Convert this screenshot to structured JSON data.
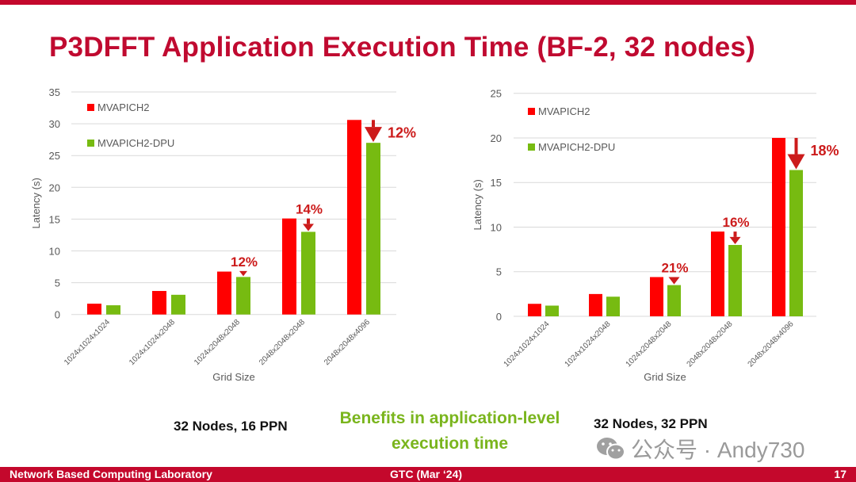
{
  "slide": {
    "title": "P3DFFT Application Execution Time (BF-2, 32 nodes)",
    "benefit_text_line1": "Benefits in application-level",
    "benefit_text_line2": "execution time",
    "footer_left": "Network Based Computing Laboratory",
    "footer_center": "GTC (Mar ‘24)",
    "page_number": "17",
    "watermark": "公众号 · Andy730",
    "colors": {
      "brand_red": "#c4082c",
      "series_red": "#ff0000",
      "series_green": "#77bb11",
      "annotation_red": "#cc1b1b",
      "benefit_green": "#7ab51d"
    }
  },
  "chart_data": [
    {
      "type": "bar",
      "caption": "32 Nodes, 16 PPN",
      "xlabel": "Grid Size",
      "ylabel": "Latency (s)",
      "ylim": [
        0,
        35
      ],
      "yticks": [
        "0",
        "5",
        "10",
        "15",
        "20",
        "25",
        "30",
        "35"
      ],
      "grid": true,
      "legend": "top-left",
      "categories": [
        "1024x1024x1024",
        "1024x1024x2048",
        "1024x2048x2048",
        "2048x2048x2048",
        "2048x2048x4096"
      ],
      "series": [
        {
          "name": "MVAPICH2",
          "color": "#ff0000",
          "values": [
            1.7,
            3.7,
            6.75,
            15.1,
            30.6
          ]
        },
        {
          "name": "MVAPICH2-DPU",
          "color": "#77bb11",
          "values": [
            1.45,
            3.1,
            5.9,
            13.0,
            27.0
          ]
        }
      ],
      "annotations": [
        {
          "category": "1024x2048x2048",
          "text": "12%"
        },
        {
          "category": "2048x2048x2048",
          "text": "14%"
        },
        {
          "category": "2048x2048x4096",
          "text": "12%"
        }
      ]
    },
    {
      "type": "bar",
      "caption": "32 Nodes, 32 PPN",
      "xlabel": "Grid Size",
      "ylabel": "Latency (s)",
      "ylim": [
        0,
        25
      ],
      "yticks": [
        "0",
        "5",
        "10",
        "15",
        "20",
        "25"
      ],
      "grid": true,
      "legend": "top-left",
      "categories": [
        "1024x1024x1024",
        "1024x1024x2048",
        "1024x2048x2048",
        "2048x2048x2048",
        "2048x2048x4096"
      ],
      "series": [
        {
          "name": "MVAPICH2",
          "color": "#ff0000",
          "values": [
            1.4,
            2.5,
            4.4,
            9.5,
            20.0
          ]
        },
        {
          "name": "MVAPICH2-DPU",
          "color": "#77bb11",
          "values": [
            1.2,
            2.2,
            3.5,
            8.0,
            16.4
          ]
        }
      ],
      "annotations": [
        {
          "category": "1024x2048x2048",
          "text": "21%"
        },
        {
          "category": "2048x2048x2048",
          "text": "16%"
        },
        {
          "category": "2048x2048x4096",
          "text": "18%"
        }
      ]
    }
  ]
}
